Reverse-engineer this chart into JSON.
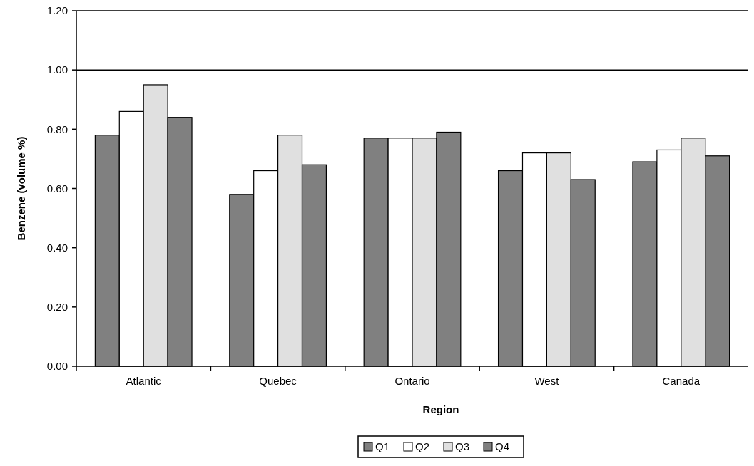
{
  "chart_data": {
    "type": "bar",
    "xlabel": "Region",
    "ylabel": "Benzene (volume %)",
    "categories": [
      "Atlantic",
      "Quebec",
      "Ontario",
      "West",
      "Canada"
    ],
    "series": [
      {
        "name": "Q1",
        "color": "#808080",
        "values": [
          0.78,
          0.58,
          0.77,
          0.66,
          0.69
        ]
      },
      {
        "name": "Q2",
        "color": "#ffffff",
        "values": [
          0.86,
          0.66,
          0.77,
          0.72,
          0.73
        ]
      },
      {
        "name": "Q3",
        "color": "#e0e0e0",
        "values": [
          0.95,
          0.78,
          0.77,
          0.72,
          0.77
        ]
      },
      {
        "name": "Q4",
        "color": "#808080",
        "values": [
          0.84,
          0.68,
          0.79,
          0.63,
          0.71
        ]
      }
    ],
    "ylim": [
      0,
      1.2
    ],
    "yticks": [
      {
        "value": 0,
        "label": "0.00"
      },
      {
        "value": 0.2,
        "label": "0.20"
      },
      {
        "value": 0.4,
        "label": "0.40"
      },
      {
        "value": 0.6,
        "label": "0.60"
      },
      {
        "value": 0.8,
        "label": "0.80"
      },
      {
        "value": 1,
        "label": "1.00"
      },
      {
        "value": 1.2,
        "label": "1.20"
      }
    ],
    "ref_lines": [
      {
        "axis": "y",
        "value": 1
      }
    ],
    "legend": "bottom"
  }
}
